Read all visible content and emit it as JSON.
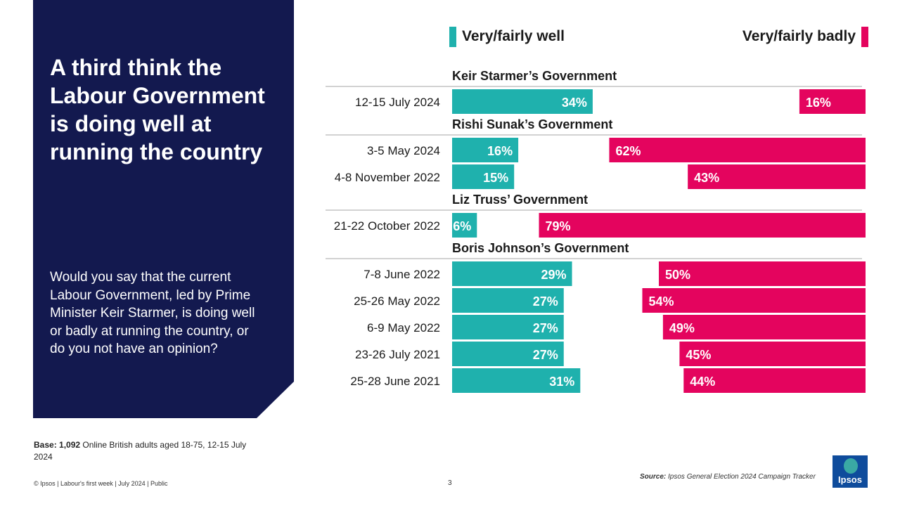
{
  "panel": {
    "headline": "A third think the Labour Government is doing well at running the country",
    "question": "Would you say that the current Labour Government, led by Prime Minister Keir Starmer, is doing well or badly at running the country, or do you not have an opinion?"
  },
  "base": {
    "label": "Base: 1,092",
    "text": " Online British adults aged 18-75, 12-15 July 2024"
  },
  "footer": {
    "copyright": "© Ipsos | Labour's first week | July 2024 | Public",
    "page": "3"
  },
  "source": {
    "label": "Source:",
    "text": " Ipsos General Election 2024 Campaign Tracker"
  },
  "logo": {
    "text": "Ipsos"
  },
  "colors": {
    "well": "#1fb1ad",
    "badly": "#e4045e",
    "navy": "#13194f",
    "rule": "#a6a6a6"
  },
  "chart_data": {
    "type": "bar",
    "orientation": "horizontal",
    "unit": "%",
    "legend": {
      "well": "Very/fairly well",
      "badly": "Very/fairly badly"
    },
    "xlim": [
      0,
      100
    ],
    "groups": [
      {
        "title": "Keir Starmer’s Government",
        "rows": [
          {
            "label": "12-15 July 2024",
            "well": 34,
            "badly": 16
          }
        ]
      },
      {
        "title": "Rishi Sunak’s Government",
        "rows": [
          {
            "label": "3-5 May 2024",
            "well": 16,
            "badly": 62
          },
          {
            "label": "4-8 November 2022",
            "well": 15,
            "badly": 43
          }
        ]
      },
      {
        "title": "Liz Truss’ Government",
        "rows": [
          {
            "label": "21-22 October 2022",
            "well": 6,
            "badly": 79
          }
        ]
      },
      {
        "title": "Boris Johnson’s Government",
        "rows": [
          {
            "label": "7-8 June 2022",
            "well": 29,
            "badly": 50
          },
          {
            "label": "25-26 May 2022",
            "well": 27,
            "badly": 54
          },
          {
            "label": "6-9 May 2022",
            "well": 27,
            "badly": 49
          },
          {
            "label": "23-26 July 2021",
            "well": 27,
            "badly": 45
          },
          {
            "label": "25-28 June 2021",
            "well": 31,
            "badly": 44
          }
        ]
      }
    ]
  }
}
